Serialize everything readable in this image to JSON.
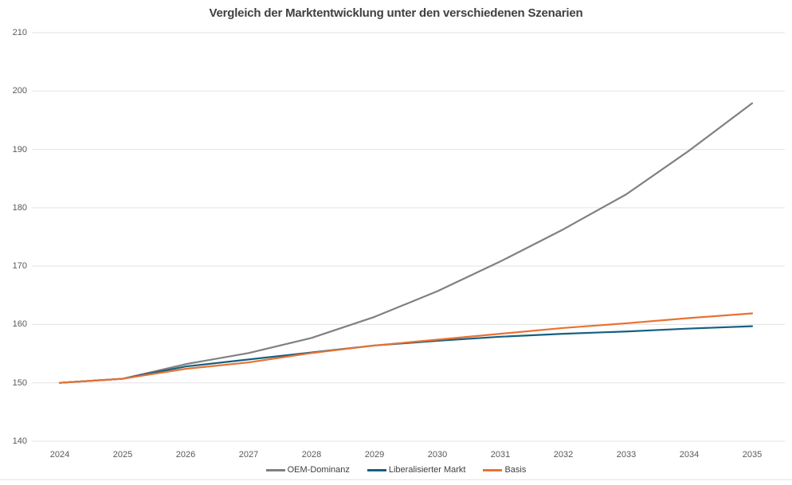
{
  "chart_data": {
    "type": "line",
    "title": "Vergleich der Marktentwicklung unter den verschiedenen Szenarien",
    "x": [
      2024,
      2025,
      2026,
      2027,
      2028,
      2029,
      2030,
      2031,
      2032,
      2033,
      2034,
      2035
    ],
    "series": [
      {
        "name": "OEM-Dominanz",
        "color": "#808080",
        "values": [
          150,
          150.7,
          153.2,
          155.1,
          157.7,
          161.3,
          165.7,
          170.8,
          176.3,
          182.3,
          189.8,
          197.9
        ]
      },
      {
        "name": "Liberalisierter Markt",
        "color": "#156082",
        "values": [
          150,
          150.7,
          152.8,
          154,
          155.2,
          156.4,
          157.2,
          157.9,
          158.4,
          158.8,
          159.3,
          159.7
        ]
      },
      {
        "name": "Basis",
        "color": "#E97132",
        "values": [
          150,
          150.7,
          152.4,
          153.5,
          155.1,
          156.4,
          157.4,
          158.4,
          159.4,
          160.2,
          161.1,
          161.9
        ]
      }
    ],
    "xlabel": "",
    "ylabel": "",
    "ylim": [
      140,
      210
    ],
    "y_ticks": [
      140,
      150,
      160,
      170,
      180,
      190,
      200,
      210
    ],
    "grid": "horizontal",
    "gridline_color": "#e3e3e3",
    "legend_position": "bottom",
    "title_color": "#404040",
    "tick_color": "#595959"
  }
}
